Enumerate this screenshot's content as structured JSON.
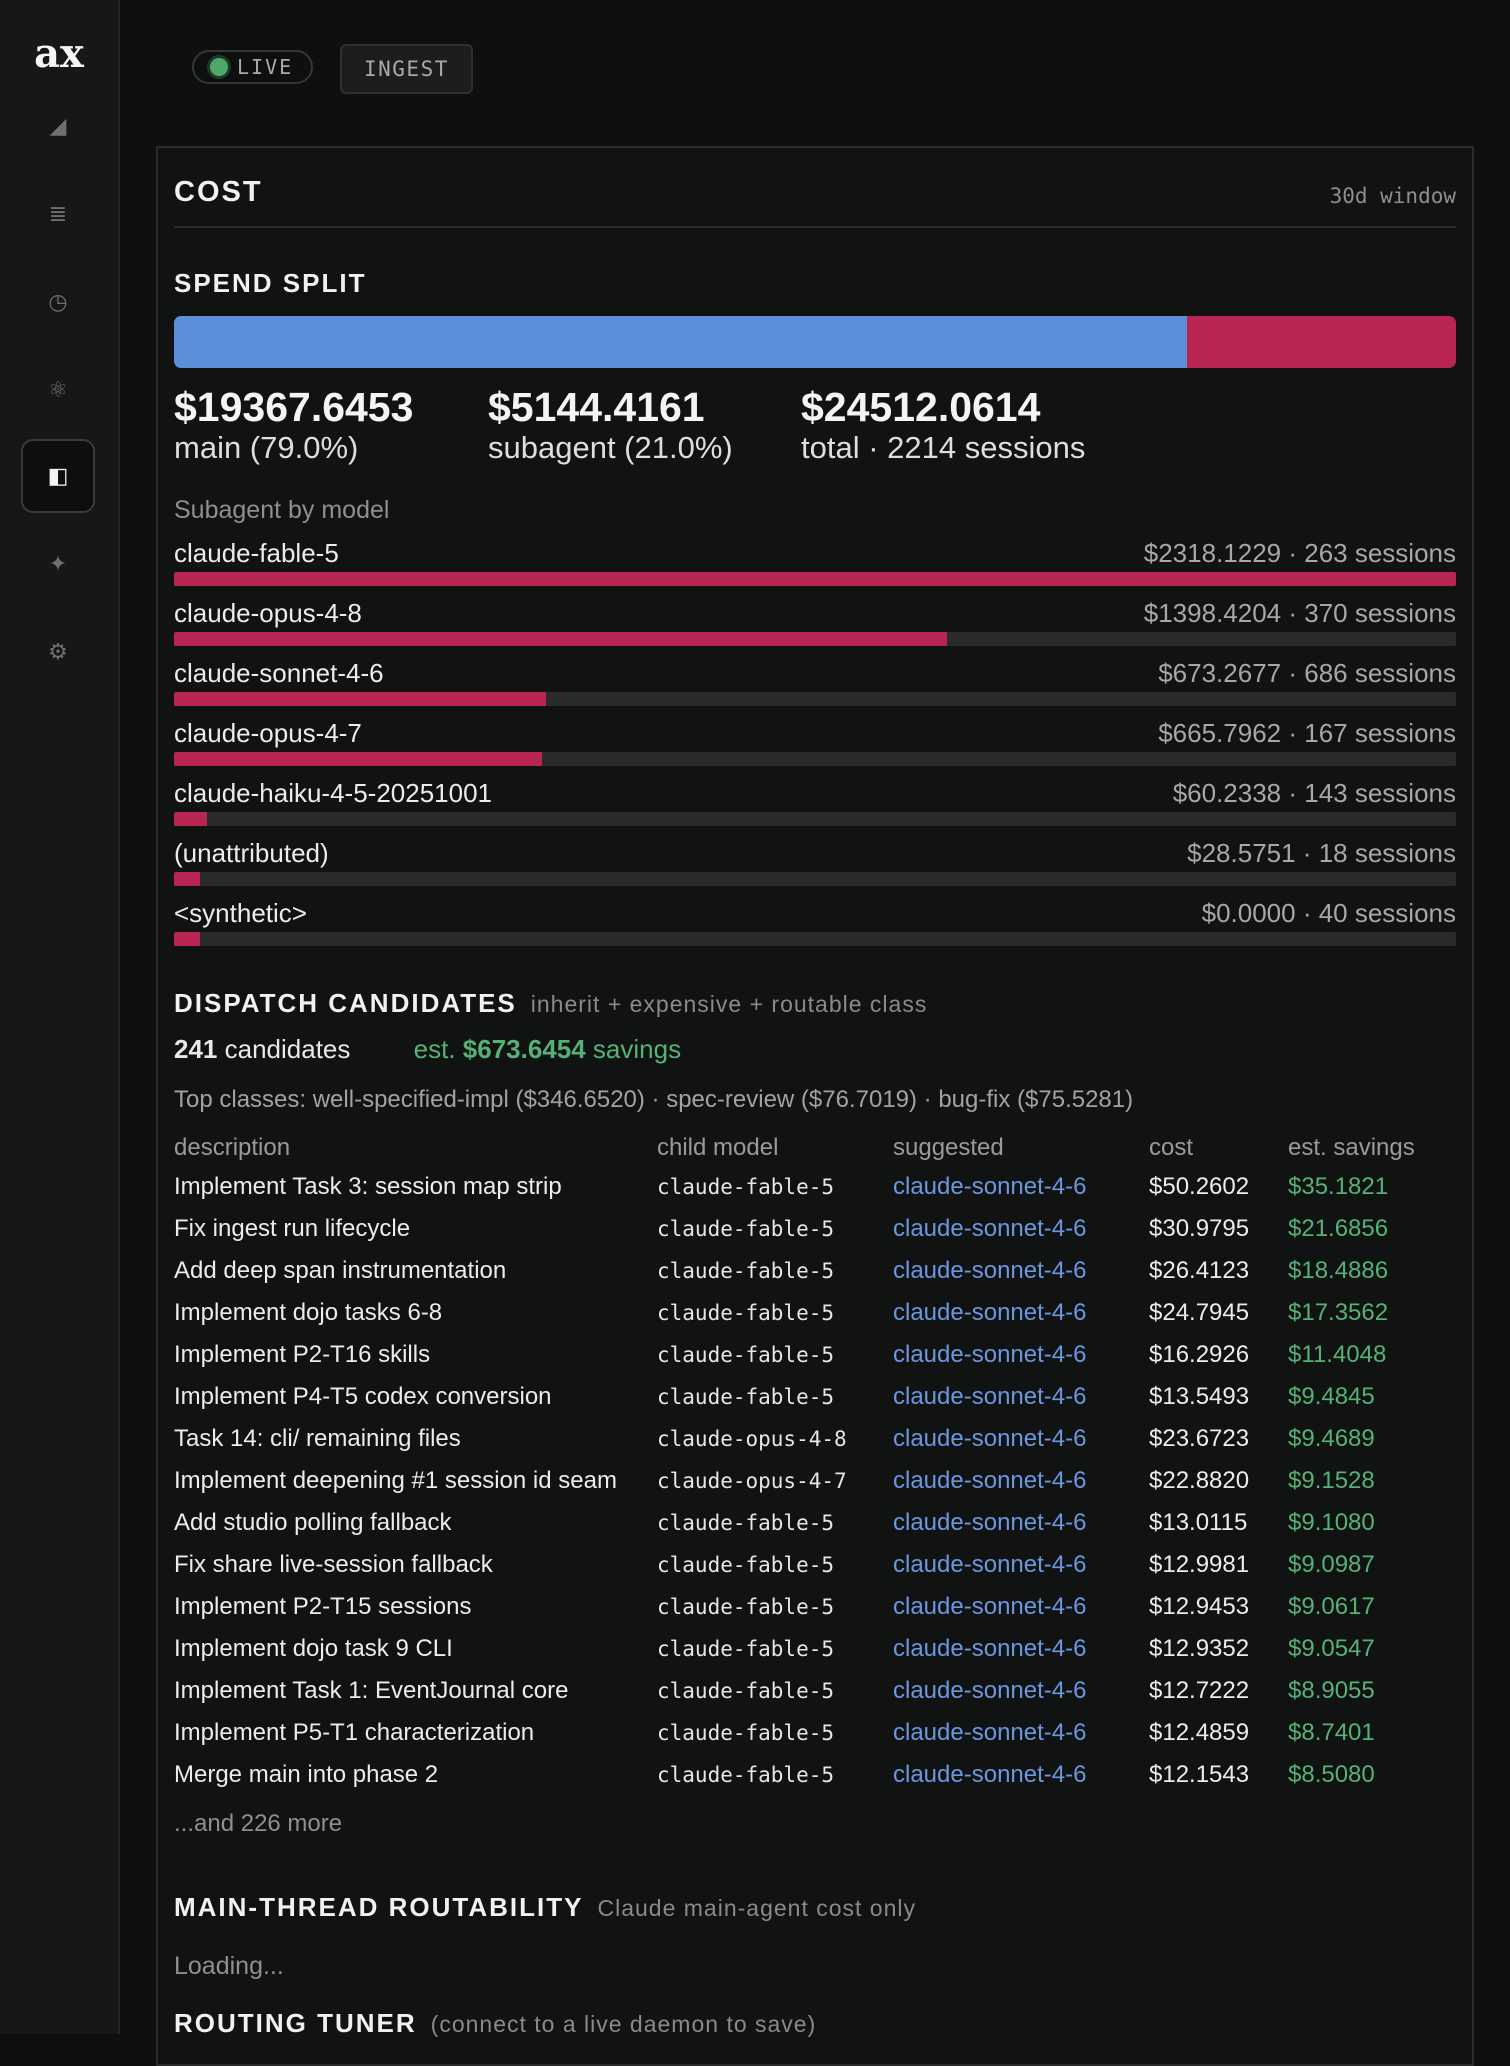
{
  "app": {
    "logo": "ax"
  },
  "sidebar": {
    "items": [
      {
        "icon": "signal-icon",
        "glyph": "◢"
      },
      {
        "icon": "list-icon",
        "glyph": "≣"
      },
      {
        "icon": "clock-icon",
        "glyph": "◷"
      },
      {
        "icon": "atom-icon",
        "glyph": "⚛"
      },
      {
        "icon": "panel-icon",
        "glyph": "◧",
        "active": true
      },
      {
        "icon": "sparkle-icon",
        "glyph": "✦"
      },
      {
        "icon": "gear-icon",
        "glyph": "⚙"
      }
    ]
  },
  "topbar": {
    "live_label": "LIVE",
    "ingest_label": "INGEST"
  },
  "panel": {
    "title": "COST",
    "window": "30d window"
  },
  "spend_split": {
    "title": "SPEND SPLIT",
    "main_fraction": 0.79,
    "main": {
      "value": "$19367.6453",
      "label": "main (79.0%)"
    },
    "subagent": {
      "value": "$5144.4161",
      "label": "subagent (21.0%)"
    },
    "total": {
      "value": "$24512.0614",
      "label": "total · 2214 sessions"
    },
    "by_model_label": "Subagent by model",
    "models": [
      {
        "name": "claude-fable-5",
        "meta": "$2318.1229 · 263 sessions",
        "fraction": 1.0
      },
      {
        "name": "claude-opus-4-8",
        "meta": "$1398.4204 · 370 sessions",
        "fraction": 0.603
      },
      {
        "name": "claude-sonnet-4-6",
        "meta": "$673.2677 · 686 sessions",
        "fraction": 0.29
      },
      {
        "name": "claude-opus-4-7",
        "meta": "$665.7962 · 167 sessions",
        "fraction": 0.287
      },
      {
        "name": "claude-haiku-4-5-20251001",
        "meta": "$60.2338 · 143 sessions",
        "fraction": 0.026
      },
      {
        "name": "(unattributed)",
        "meta": "$28.5751 · 18 sessions",
        "fraction": 0.02
      },
      {
        "name": "<synthetic>",
        "meta": "$0.0000 · 40 sessions",
        "fraction": 0.02
      }
    ]
  },
  "dispatch": {
    "title": "DISPATCH CANDIDATES",
    "subtitle": "inherit + expensive + routable class",
    "count": "241",
    "count_label": "candidates",
    "savings_prefix": "est.",
    "savings_value": "$673.6454",
    "savings_suffix": "savings",
    "top_classes": "Top classes: well-specified-impl ($346.6520) · spec-review ($76.7019) · bug-fix ($75.5281)",
    "columns": [
      "description",
      "child model",
      "suggested",
      "cost",
      "est. savings"
    ],
    "rows": [
      [
        "Implement Task 3: session map strip",
        "claude-fable-5",
        "claude-sonnet-4-6",
        "$50.2602",
        "$35.1821"
      ],
      [
        "Fix ingest run lifecycle",
        "claude-fable-5",
        "claude-sonnet-4-6",
        "$30.9795",
        "$21.6856"
      ],
      [
        "Add deep span instrumentation",
        "claude-fable-5",
        "claude-sonnet-4-6",
        "$26.4123",
        "$18.4886"
      ],
      [
        "Implement dojo tasks 6-8",
        "claude-fable-5",
        "claude-sonnet-4-6",
        "$24.7945",
        "$17.3562"
      ],
      [
        "Implement P2-T16 skills",
        "claude-fable-5",
        "claude-sonnet-4-6",
        "$16.2926",
        "$11.4048"
      ],
      [
        "Implement P4-T5 codex conversion",
        "claude-fable-5",
        "claude-sonnet-4-6",
        "$13.5493",
        "$9.4845"
      ],
      [
        "Task 14: cli/ remaining files",
        "claude-opus-4-8",
        "claude-sonnet-4-6",
        "$23.6723",
        "$9.4689"
      ],
      [
        "Implement deepening #1 session id seam",
        "claude-opus-4-7",
        "claude-sonnet-4-6",
        "$22.8820",
        "$9.1528"
      ],
      [
        "Add studio polling fallback",
        "claude-fable-5",
        "claude-sonnet-4-6",
        "$13.0115",
        "$9.1080"
      ],
      [
        "Fix share live-session fallback",
        "claude-fable-5",
        "claude-sonnet-4-6",
        "$12.9981",
        "$9.0987"
      ],
      [
        "Implement P2-T15 sessions",
        "claude-fable-5",
        "claude-sonnet-4-6",
        "$12.9453",
        "$9.0617"
      ],
      [
        "Implement dojo task 9 CLI",
        "claude-fable-5",
        "claude-sonnet-4-6",
        "$12.9352",
        "$9.0547"
      ],
      [
        "Implement Task 1: EventJournal core",
        "claude-fable-5",
        "claude-sonnet-4-6",
        "$12.7222",
        "$8.9055"
      ],
      [
        "Implement P5-T1 characterization",
        "claude-fable-5",
        "claude-sonnet-4-6",
        "$12.4859",
        "$8.7401"
      ],
      [
        "Merge main into phase 2",
        "claude-fable-5",
        "claude-sonnet-4-6",
        "$12.1543",
        "$8.5080"
      ]
    ],
    "more": "...and 226 more"
  },
  "routability": {
    "title": "MAIN-THREAD ROUTABILITY",
    "subtitle": "Claude main-agent cost only",
    "loading": "Loading..."
  },
  "tuner": {
    "title": "ROUTING TUNER",
    "subtitle": "(connect to a live daemon to save)"
  }
}
